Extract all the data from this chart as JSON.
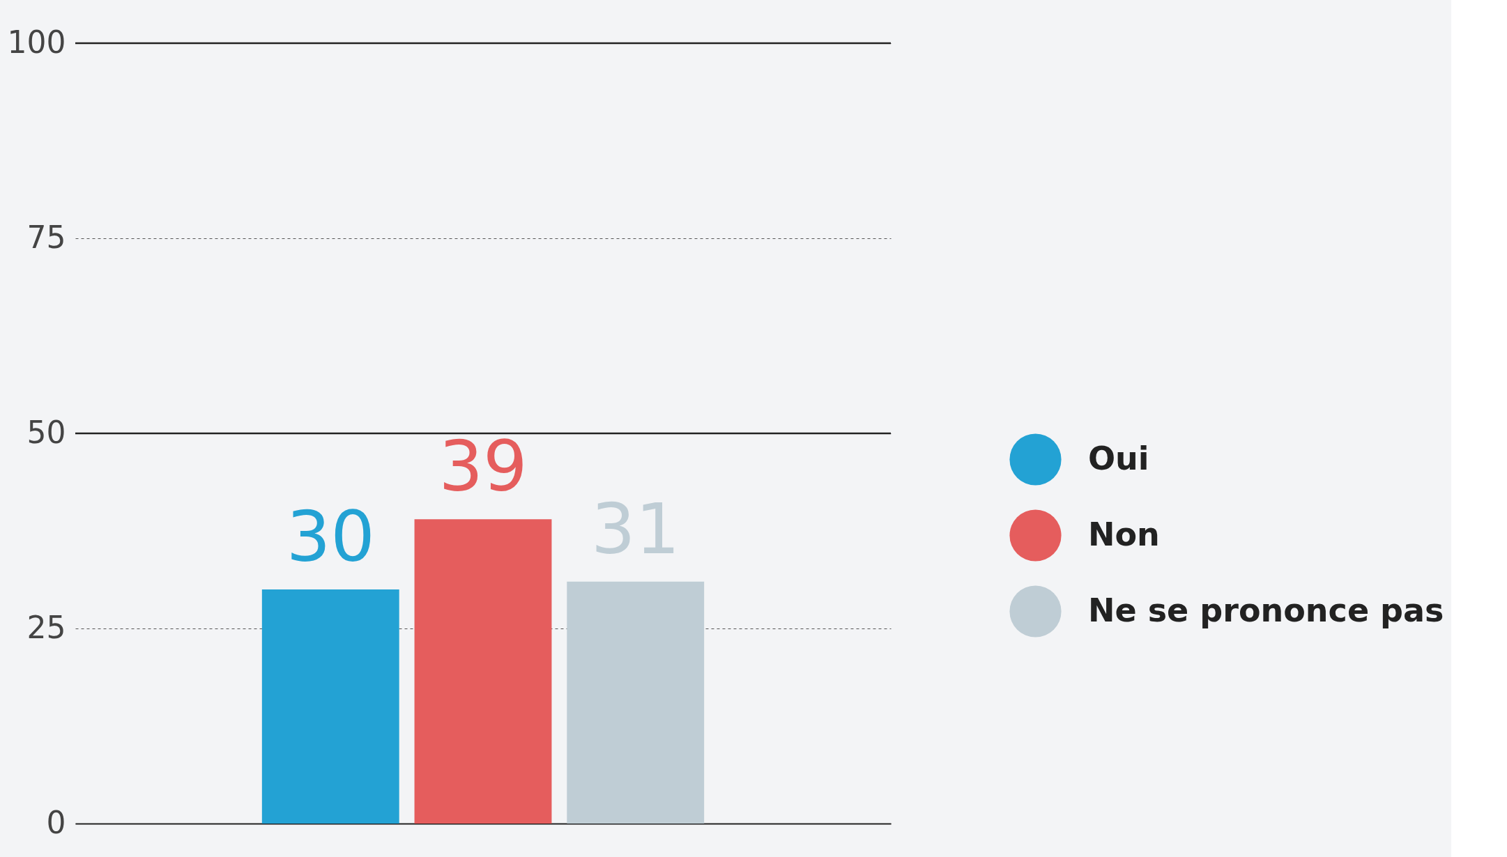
{
  "chart_data": {
    "type": "bar",
    "categories": [
      null
    ],
    "series": [
      {
        "name": "Oui",
        "color": "#23a2d4",
        "values": [
          30
        ]
      },
      {
        "name": "Non",
        "color": "#e55d5d",
        "values": [
          39
        ]
      },
      {
        "name": "Ne se prononce pas",
        "color": "#bfcdd5",
        "values": [
          31
        ]
      }
    ],
    "ylim": [
      0,
      100
    ],
    "yticks": [
      0,
      25,
      50,
      75,
      100
    ],
    "grid": "y",
    "ref_lines": [
      {
        "axis": "y",
        "value": 50,
        "color": "#222222",
        "line_style": "solid"
      },
      {
        "axis": "y",
        "value": 100,
        "color": "#222222",
        "line_style": "solid"
      }
    ],
    "data_labels": true,
    "legend": "right"
  }
}
